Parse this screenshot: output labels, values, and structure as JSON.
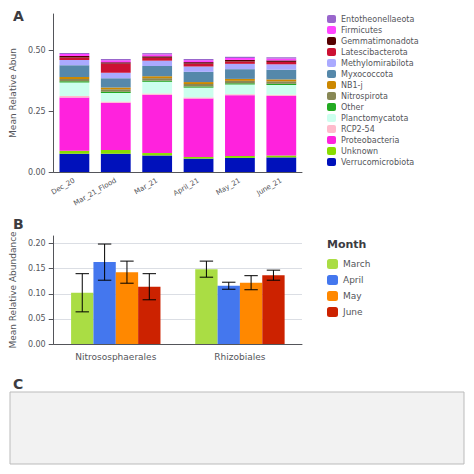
{
  "chart_data": [
    {
      "type": "bar",
      "title": "A",
      "stacked": true,
      "categories": [
        "Dec_20",
        "Mar_21_Flood",
        "Mar_21",
        "April_21",
        "May_21",
        "June_21"
      ],
      "ylabel": "Mean Relative Abun",
      "ylim": [
        0,
        0.65
      ],
      "yticks": [
        {
          "value": 0,
          "label": "0.00"
        },
        0.25,
        {
          "value": 0.5,
          "label": "0.50"
        }
      ],
      "grid": false,
      "legend": "right",
      "series": [
        {
          "name": "Verrucomicrobiota",
          "color": "#0011BB",
          "values": [
            0.075,
            0.075,
            0.068,
            0.055,
            0.058,
            0.06
          ]
        },
        {
          "name": "Unknown",
          "color": "#88DD00",
          "values": [
            0.012,
            0.015,
            0.01,
            0.007,
            0.008,
            0.008
          ]
        },
        {
          "name": "Proteobacteria",
          "color": "#FF22DD",
          "values": [
            0.22,
            0.195,
            0.24,
            0.24,
            0.25,
            0.245
          ]
        },
        {
          "name": "RCP2-54",
          "color": "#FFBBCC",
          "values": [
            0.006,
            0.005,
            0.005,
            0.005,
            0.004,
            0.005
          ]
        },
        {
          "name": "Planctomycatota",
          "color": "#CCFFEE",
          "values": [
            0.055,
            0.035,
            0.048,
            0.04,
            0.04,
            0.04
          ]
        },
        {
          "name": "Other",
          "color": "#22AA22",
          "values": [
            0.005,
            0.005,
            0.005,
            0.005,
            0.005,
            0.005
          ]
        },
        {
          "name": "Nitrospirota",
          "color": "#888855",
          "values": [
            0.01,
            0.01,
            0.01,
            0.01,
            0.01,
            0.01
          ]
        },
        {
          "name": "NB1-j",
          "color": "#CC8800",
          "values": [
            0.008,
            0.008,
            0.008,
            0.008,
            0.008,
            0.008
          ]
        },
        {
          "name": "Myxococcota",
          "color": "#5588AA",
          "values": [
            0.048,
            0.038,
            0.042,
            0.042,
            0.04,
            0.04
          ]
        },
        {
          "name": "Methylomirabilota",
          "color": "#AAAAFF",
          "values": [
            0.022,
            0.022,
            0.022,
            0.022,
            0.022,
            0.022
          ]
        },
        {
          "name": "Latescibacterota",
          "color": "#CC1133",
          "values": [
            0.01,
            0.038,
            0.012,
            0.012,
            0.01,
            0.01
          ]
        },
        {
          "name": "Gemmatimonadota",
          "color": "#550000",
          "values": [
            0.006,
            0.006,
            0.006,
            0.006,
            0.006,
            0.006
          ]
        },
        {
          "name": "Firmicutes",
          "color": "#FF44FF",
          "values": [
            0.008,
            0.008,
            0.008,
            0.008,
            0.008,
            0.008
          ]
        },
        {
          "name": "Entotheonellaeota",
          "color": "#9966CC",
          "values": [
            0.005,
            0.005,
            0.005,
            0.005,
            0.005,
            0.005
          ]
        }
      ]
    },
    {
      "type": "bar",
      "title": "B",
      "categories": [
        "Nitrososphaerales",
        "Rhizobiales"
      ],
      "ylabel": "Mean Relative Abundance",
      "ylim": [
        0,
        0.215
      ],
      "yticks": [
        {
          "value": 0,
          "label": "0.00"
        },
        0.05,
        {
          "value": 0.1,
          "label": "0.10"
        },
        0.15,
        {
          "value": 0.2,
          "label": "0.20"
        }
      ],
      "grid": true,
      "legend": "right",
      "legend_title": "Month",
      "series": [
        {
          "name": "March",
          "color": "#AADD44",
          "values": [
            0.102,
            0.149
          ],
          "errors": [
            0.038,
            0.016
          ]
        },
        {
          "name": "April",
          "color": "#4477EE",
          "values": [
            0.163,
            0.116
          ],
          "errors": [
            0.036,
            0.007
          ]
        },
        {
          "name": "May",
          "color": "#FF8800",
          "values": [
            0.143,
            0.122
          ],
          "errors": [
            0.022,
            0.014
          ]
        },
        {
          "name": "June",
          "color": "#CC2200",
          "values": [
            0.114,
            0.137
          ],
          "errors": [
            0.026,
            0.01
          ]
        }
      ]
    },
    {
      "type": "placeholder",
      "title": "C"
    }
  ]
}
